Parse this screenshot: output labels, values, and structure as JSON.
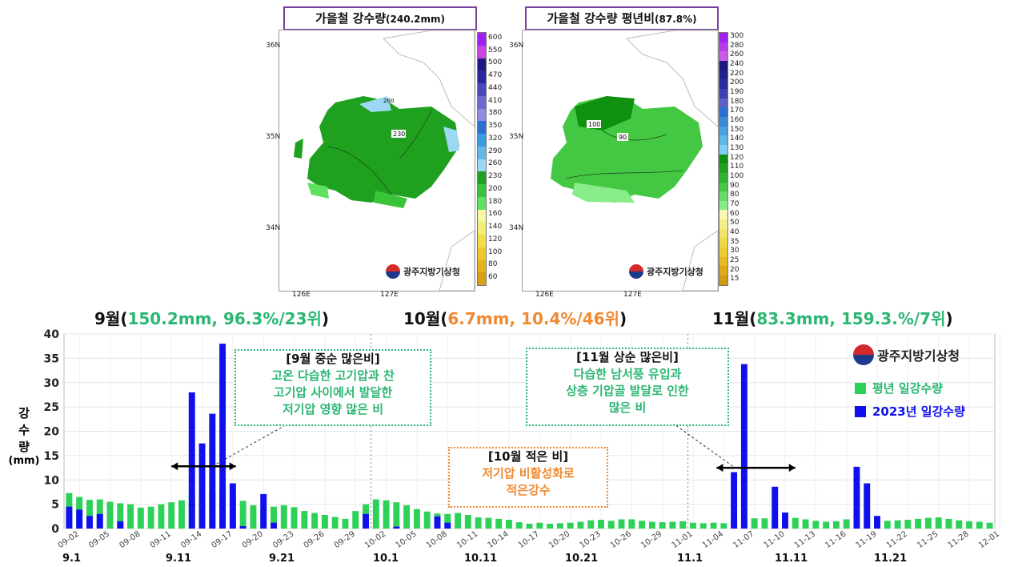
{
  "maps": [
    {
      "title": "가을철 강수량",
      "title_value": "(240.2mm)",
      "contours": [
        "230",
        "260"
      ],
      "colorbar": [
        "600",
        "550",
        "500",
        "470",
        "440",
        "410",
        "380",
        "350",
        "320",
        "290",
        "260",
        "230",
        "200",
        "180",
        "160",
        "140",
        "120",
        "100",
        "80",
        "60"
      ],
      "colorbar_colors": [
        "#a020f0",
        "#cc44e0",
        "#1a1a80",
        "#28289c",
        "#4848b8",
        "#6a6ad0",
        "#8c8ce0",
        "#2c6fd0",
        "#3a9ce0",
        "#64b8ec",
        "#9cd8f4",
        "#1fa11f",
        "#3ac43a",
        "#60e060",
        "#f6f6a0",
        "#f4ec74",
        "#f2dc48",
        "#ecc82c",
        "#e4b420",
        "#d8a018"
      ],
      "lat_labels": [
        "36N",
        "35N",
        "34N"
      ],
      "lon_labels": [
        "126E",
        "127E"
      ],
      "logo": "광주지방기상청"
    },
    {
      "title": "가을철 강수량 평년비",
      "title_value": "(87.8%)",
      "contours": [
        "100",
        "90"
      ],
      "colorbar": [
        "300",
        "280",
        "260",
        "240",
        "220",
        "200",
        "190",
        "180",
        "170",
        "160",
        "150",
        "140",
        "130",
        "120",
        "110",
        "100",
        "90",
        "80",
        "70",
        "60",
        "50",
        "40",
        "35",
        "30",
        "25",
        "20",
        "15"
      ],
      "colorbar_colors": [
        "#a020f0",
        "#b83cec",
        "#cc5ce8",
        "#1a1a80",
        "#22228e",
        "#2c2ca0",
        "#4040b4",
        "#6060c8",
        "#2c6fd0",
        "#3a8ad8",
        "#4aa0e0",
        "#60b8ea",
        "#80cef2",
        "#109010",
        "#1fa11f",
        "#30b430",
        "#44c844",
        "#66dc66",
        "#88ec88",
        "#f8f8b0",
        "#f4ee88",
        "#f2e464",
        "#f0d848",
        "#eccc34",
        "#e6bc24",
        "#dcaa1a",
        "#d09a14"
      ],
      "lat_labels": [],
      "lon_labels": [
        "126E",
        "127E"
      ],
      "logo": "광주지방기상청"
    }
  ],
  "month_headers": [
    {
      "month": "9월",
      "open": "(",
      "detail": "150.2mm, 96.3%/23위",
      "close": ")",
      "color": "#2bb673"
    },
    {
      "month": "10월",
      "open": "(",
      "detail": "6.7mm, 10.4%/46위",
      "close": ")",
      "color": "#f08a30"
    },
    {
      "month": "11월",
      "open": "(",
      "detail": "83.3mm, 159.3.%/7위",
      "close": ")",
      "color": "#2bb673"
    }
  ],
  "annotations": [
    {
      "title": "[9월 중순 많은비]",
      "lines": [
        "고온 다습한 고기압과 찬",
        "고기압 사이에서 발달한",
        "저기압 영향 많은 비"
      ],
      "color": "#2bb673"
    },
    {
      "title": "[10월 적은 비]",
      "lines": [
        "저기압 비활성화로",
        "적은강수"
      ],
      "color": "#f08a30"
    },
    {
      "title": "[11월 상순 많은비]",
      "lines": [
        "다습한 남서풍 유입과",
        "상층 기압골 발달로 인한",
        "많은 비"
      ],
      "color": "#2bb673"
    }
  ],
  "legend": {
    "logo": "광주지방기상청",
    "items": [
      {
        "label": "평년 일강수량",
        "color": "#2ed158"
      },
      {
        "label": "2023년 일강수량",
        "color": "#1010ee"
      }
    ]
  },
  "bottom_labels": [
    "9.1",
    "9.11",
    "9.21",
    "10.1",
    "10.11",
    "10.21",
    "11.1",
    "11.11",
    "11.21"
  ],
  "chart_data": {
    "type": "bar",
    "ylabel": [
      "강",
      "수",
      "량",
      "(mm)"
    ],
    "ylim": [
      0,
      40
    ],
    "yticks": [
      0,
      5,
      10,
      15,
      20,
      25,
      30,
      35,
      40
    ],
    "grid": true,
    "x_tick_labels": [
      "09-02",
      "09-05",
      "09-08",
      "09-11",
      "09-14",
      "09-17",
      "09-20",
      "09-23",
      "09-26",
      "09-29",
      "10-02",
      "10-05",
      "10-08",
      "10-11",
      "10-14",
      "10-17",
      "10-20",
      "10-23",
      "10-26",
      "10-29",
      "11-01",
      "11-04",
      "11-07",
      "11-10",
      "11-13",
      "11-16",
      "11-19",
      "11-22",
      "11-25",
      "11-28",
      "12-01"
    ],
    "series": [
      {
        "name": "평년 일강수량",
        "color": "#2ed158",
        "values": [
          7.3,
          6.5,
          5.9,
          6.0,
          5.5,
          5.2,
          5.0,
          4.3,
          4.5,
          5.0,
          5.4,
          5.8,
          7.2,
          7.5,
          7.7,
          8.0,
          7.2,
          5.7,
          4.8,
          4.3,
          4.5,
          4.8,
          4.4,
          3.6,
          3.2,
          2.8,
          2.4,
          2.0,
          3.6,
          5.0,
          6.0,
          5.8,
          5.4,
          4.8,
          4.0,
          3.5,
          3.1,
          3.0,
          3.2,
          2.8,
          2.3,
          2.2,
          2.0,
          1.8,
          1.3,
          1.0,
          1.2,
          1.0,
          1.1,
          1.2,
          1.4,
          1.7,
          1.8,
          1.6,
          1.9,
          1.9,
          1.6,
          1.4,
          1.3,
          1.4,
          1.5,
          1.2,
          1.1,
          1.2,
          1.1,
          1.4,
          1.9,
          2.1,
          2.1,
          2.0,
          2.2,
          2.2,
          1.9,
          1.6,
          1.4,
          1.5,
          1.9,
          2.2,
          2.3,
          1.9,
          1.6,
          1.7,
          1.8,
          2.0,
          2.2,
          2.3,
          2.0,
          1.7,
          1.5,
          1.4,
          1.2
        ]
      },
      {
        "name": "2023년 일강수량",
        "color": "#1010ee",
        "values": [
          4.5,
          3.9,
          2.6,
          3.0,
          0,
          1.5,
          0,
          0,
          0,
          0,
          0,
          0,
          28.0,
          17.5,
          23.6,
          38.0,
          9.3,
          0.5,
          0,
          7.1,
          1.2,
          0,
          0,
          0,
          0,
          0,
          0,
          0,
          0,
          3.0,
          0,
          0,
          0.4,
          0,
          0,
          0,
          2.5,
          1.2,
          0,
          0,
          0,
          0,
          0,
          0,
          0,
          0,
          0,
          0,
          0,
          0,
          0,
          0,
          0,
          0,
          0,
          0,
          0,
          0,
          0,
          0,
          0,
          0,
          0,
          0,
          0,
          11.6,
          33.8,
          0,
          0,
          8.6,
          3.3,
          0,
          0,
          0,
          0,
          0,
          0,
          12.7,
          9.3,
          2.6,
          0,
          0,
          0,
          0,
          0,
          0,
          0,
          0,
          0,
          0,
          0
        ]
      }
    ]
  }
}
